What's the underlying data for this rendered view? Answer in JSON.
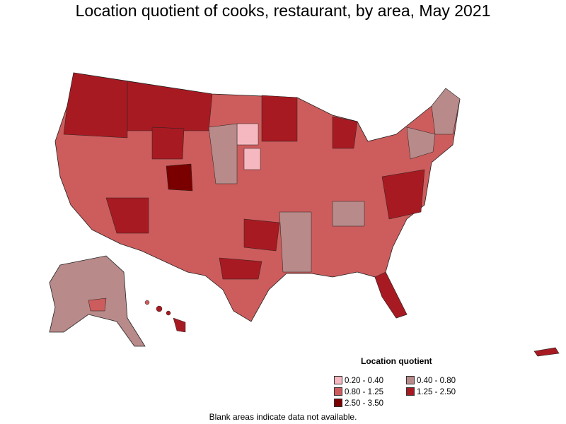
{
  "title": "Location quotient of cooks, restaurant, by area, May 2021",
  "legend": {
    "title": "Location quotient",
    "items": [
      {
        "label": "0.20 - 0.40",
        "color": "#f6b8c0"
      },
      {
        "label": "0.40 - 0.80",
        "color": "#b88a8a"
      },
      {
        "label": "0.80 - 1.25",
        "color": "#cd5c5c"
      },
      {
        "label": "1.25 - 2.50",
        "color": "#a81a22"
      },
      {
        "label": "2.50 - 3.50",
        "color": "#7a0000"
      }
    ]
  },
  "footnote": "Blank areas indicate data not available.",
  "colors": {
    "low": "#f6b8c0",
    "mid_low": "#b88a8a",
    "mid": "#cd5c5c",
    "high": "#a81a22",
    "very_high": "#7a0000",
    "border": "#222222"
  }
}
